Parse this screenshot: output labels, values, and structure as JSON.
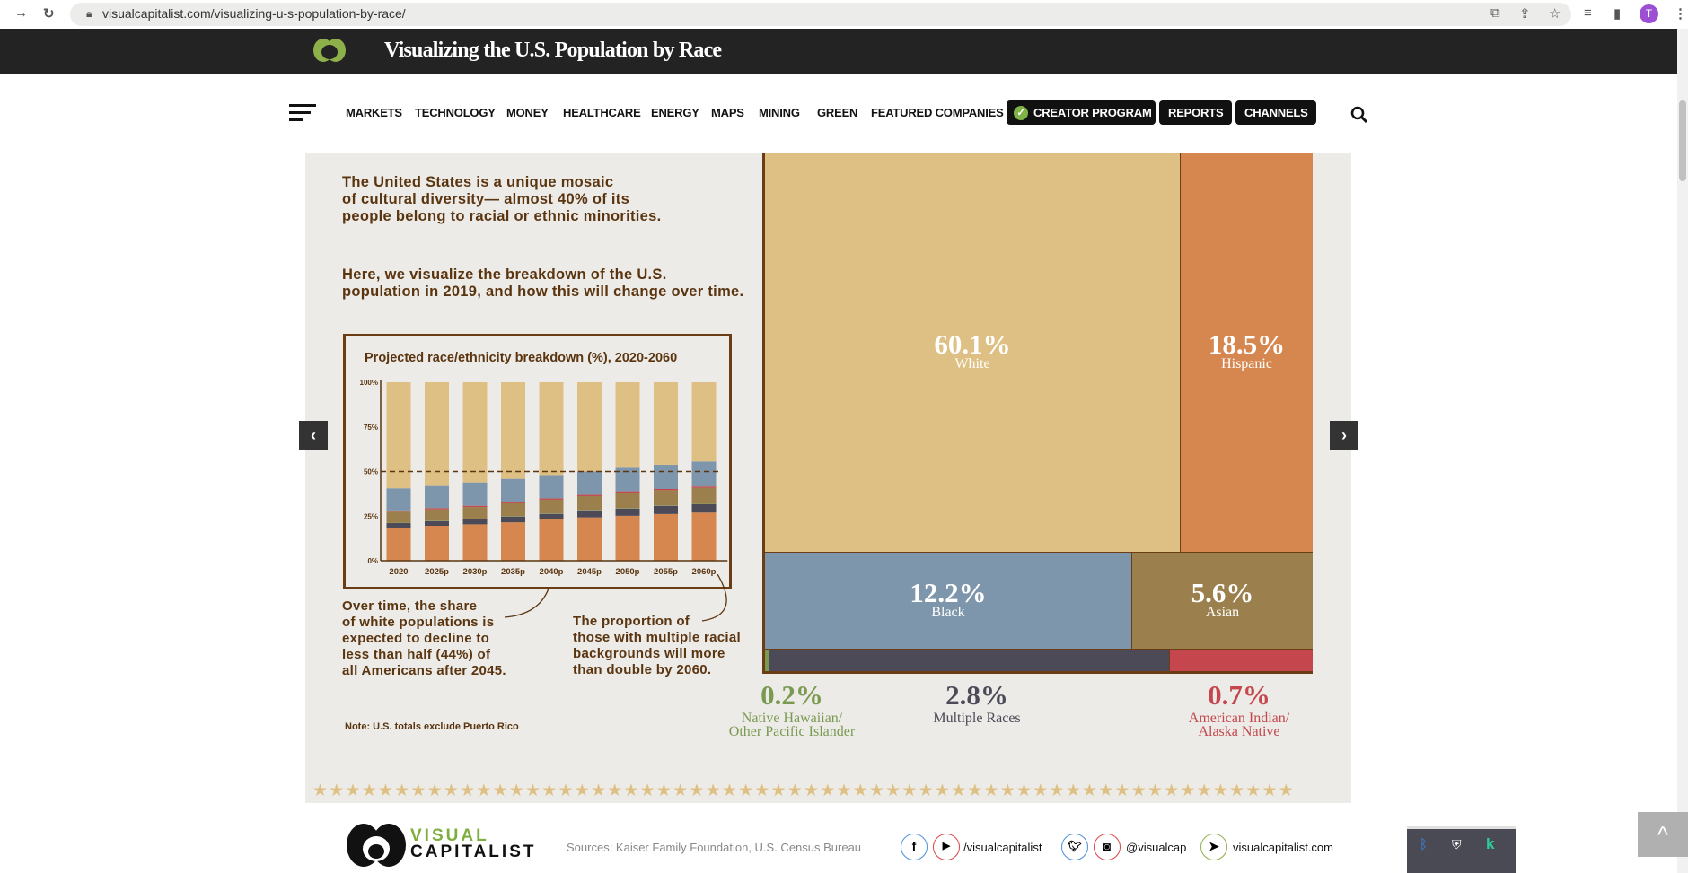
{
  "browser": {
    "url": "visualcapitalist.com/visualizing-u-s-population-by-race/",
    "profile_initial": "T"
  },
  "header": {
    "title": "Visualizing the U.S. Population by Race"
  },
  "nav": {
    "items": [
      "MARKETS",
      "TECHNOLOGY",
      "MONEY",
      "HEALTHCARE",
      "ENERGY",
      "MAPS",
      "MINING",
      "GREEN",
      "FEATURED COMPANIES"
    ],
    "buttons": [
      "CREATOR PROGRAM",
      "REPORTS",
      "CHANNELS"
    ]
  },
  "intro": {
    "p1": [
      "The United States is a unique mosaic",
      "of cultural diversity— almost 40% of its",
      "people belong to racial or ethnic minorities."
    ],
    "p2": [
      "Here, we visualize the breakdown of the U.S.",
      "population in 2019, and how this will change over time."
    ]
  },
  "annotations": {
    "white": [
      "Over time, the share",
      "of white populations is",
      "expected to decline to",
      "less than half (44%) of",
      "all Americans after 2045."
    ],
    "multiple": [
      "The proportion of",
      "those with multiple racial",
      "backgrounds will more",
      "than double by 2060."
    ],
    "note": "Note: U.S. totals exclude Puerto Rico"
  },
  "chart_data": {
    "type": "bar",
    "stacked": true,
    "title": "Projected race/ethnicity breakdown (%), 2020-2060",
    "categories": [
      "2020",
      "2025p",
      "2030p",
      "2035p",
      "2040p",
      "2045p",
      "2050p",
      "2055p",
      "2060p"
    ],
    "yticks": [
      "0%",
      "25%",
      "50%",
      "75%",
      "100%"
    ],
    "ylim": [
      0,
      100
    ],
    "reference_line": 50,
    "series": [
      {
        "key": "hispanic",
        "color": "#d5874f",
        "values": [
          18.6,
          19.6,
          20.4,
          21.5,
          23.2,
          24.3,
          25.2,
          26.2,
          27.0
        ]
      },
      {
        "key": "multiple",
        "color": "#4b4a56",
        "values": [
          2.5,
          2.6,
          2.8,
          3.3,
          3.1,
          4.0,
          4.1,
          4.6,
          4.7
        ]
      },
      {
        "key": "nhpi",
        "color": "#7a9a52",
        "values": [
          0.2,
          0.2,
          0.2,
          0.2,
          0.2,
          0.2,
          0.2,
          0.2,
          0.2
        ]
      },
      {
        "key": "asian",
        "color": "#9b7f4d",
        "values": [
          6.2,
          6.4,
          6.7,
          7.2,
          7.7,
          7.7,
          8.7,
          8.5,
          9.0
        ]
      },
      {
        "key": "aian",
        "color": "#c5474d",
        "values": [
          0.7,
          0.7,
          0.7,
          0.7,
          0.7,
          0.7,
          0.7,
          0.7,
          0.7
        ]
      },
      {
        "key": "black",
        "color": "#7e96ab",
        "values": [
          12.4,
          12.4,
          13.1,
          13.0,
          13.1,
          13.1,
          13.2,
          13.6,
          14.0
        ]
      },
      {
        "key": "white",
        "color": "#dfc084",
        "values": [
          59.4,
          58.1,
          56.1,
          54.1,
          52.0,
          50.0,
          47.9,
          46.2,
          44.4
        ]
      }
    ]
  },
  "treemap": {
    "white": {
      "pct": "60.1%",
      "label": "White",
      "color": "#dfc084"
    },
    "hispanic": {
      "pct": "18.5%",
      "label": "Hispanic",
      "color": "#d5874f"
    },
    "black": {
      "pct": "12.2%",
      "label": "Black",
      "color": "#7e96ab"
    },
    "asian": {
      "pct": "5.6%",
      "label": "Asian",
      "color": "#9b7f4d"
    },
    "nhpi": {
      "pct": "0.2%",
      "label1": "Native Hawaiian/",
      "label2": "Other Pacific Islander",
      "color": "#7a9a52"
    },
    "multiple": {
      "pct": "2.8%",
      "label": "Multiple Races",
      "color": "#4b4a56"
    },
    "aian": {
      "pct": "0.7%",
      "label1": "American Indian/",
      "label2": "Alaska Native",
      "color": "#c5474d"
    }
  },
  "footer": {
    "logo_top": "VISUAL",
    "logo_bottom": "CAPITALIST",
    "sources": "Sources: Kaiser Family Foundation, U.S. Census Bureau",
    "handle1": "/visualcapitalist",
    "handle2": "@visualcap",
    "site": "visualcapitalist.com"
  }
}
